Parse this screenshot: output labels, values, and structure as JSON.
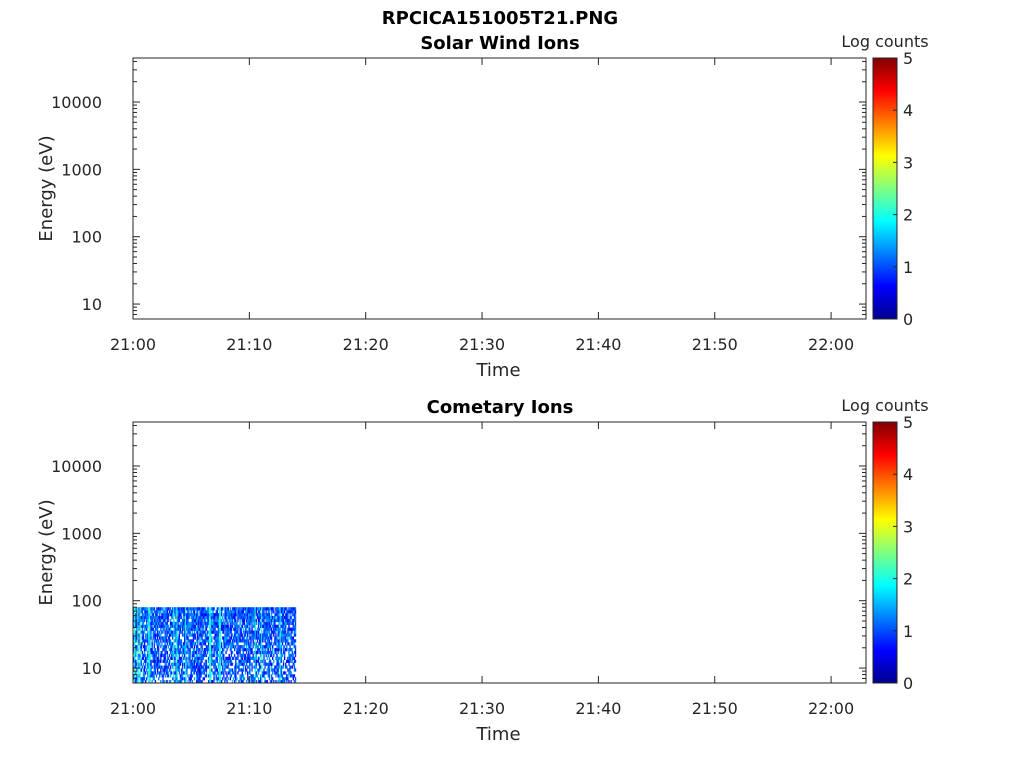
{
  "figure_title": "RPCICA151005T21.PNG",
  "chart_data": [
    {
      "type": "heatmap",
      "title": "Solar Wind Ions",
      "xlabel": "Time",
      "ylabel": "Energy (eV)",
      "x_ticks": [
        "21:00",
        "21:10",
        "21:20",
        "21:30",
        "21:40",
        "21:50",
        "22:00"
      ],
      "xlim": [
        "21:00",
        "22:03"
      ],
      "y_scale": "log",
      "y_ticks": [
        10,
        100,
        1000,
        10000
      ],
      "ylim": [
        6,
        45000
      ],
      "colorbar": {
        "label": "Log counts",
        "ticks": [
          0,
          1,
          2,
          3,
          4,
          5
        ],
        "range": [
          0,
          5
        ],
        "colormap": "jet"
      },
      "data": {
        "time_range": null,
        "energy_range_eV": null,
        "description_values": []
      }
    },
    {
      "type": "heatmap",
      "title": "Cometary Ions",
      "xlabel": "Time",
      "ylabel": "Energy (eV)",
      "x_ticks": [
        "21:00",
        "21:10",
        "21:20",
        "21:30",
        "21:40",
        "21:50",
        "22:00"
      ],
      "xlim": [
        "21:00",
        "22:03"
      ],
      "y_scale": "log",
      "y_ticks": [
        10,
        100,
        1000,
        10000
      ],
      "ylim": [
        6,
        45000
      ],
      "colorbar": {
        "label": "Log counts",
        "ticks": [
          0,
          1,
          2,
          3,
          4,
          5
        ],
        "range": [
          0,
          5
        ],
        "colormap": "jet"
      },
      "data": {
        "time_range": [
          "21:00",
          "21:14"
        ],
        "energy_range_eV": [
          6,
          80
        ],
        "log_counts_range": [
          0,
          2.5
        ],
        "dominant_log_counts": 1.2
      }
    }
  ]
}
